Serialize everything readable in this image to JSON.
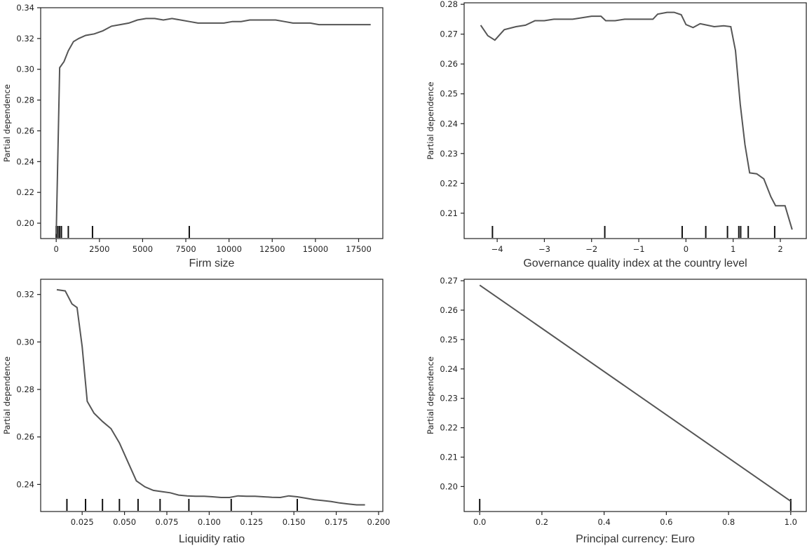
{
  "chart_data": [
    {
      "type": "line",
      "xlabel": "Firm size",
      "ylabel": "Partial dependence",
      "xlim": [
        -900,
        18900
      ],
      "ylim": [
        0.19,
        0.34
      ],
      "xticks": [
        0,
        2500,
        5000,
        7500,
        10000,
        12500,
        15000,
        17500
      ],
      "xtick_labels": [
        "0",
        "2500",
        "5000",
        "7500",
        "10000",
        "12500",
        "15000",
        "17500"
      ],
      "yticks": [
        0.2,
        0.22,
        0.24,
        0.26,
        0.28,
        0.3,
        0.32,
        0.34
      ],
      "ytick_labels": [
        "0.20",
        "0.22",
        "0.24",
        "0.26",
        "0.28",
        "0.30",
        "0.32",
        "0.34"
      ],
      "series": [
        {
          "x": [
            0,
            200,
            450,
            700,
            1000,
            1300,
            1700,
            2200,
            2700,
            3200,
            3700,
            4200,
            4700,
            5200,
            5700,
            6200,
            6700,
            7200,
            7700,
            8200,
            8700,
            9200,
            9700,
            10200,
            10700,
            11200,
            11700,
            12200,
            12700,
            13200,
            13700,
            14200,
            14700,
            15200,
            15700,
            16200,
            16700,
            17200,
            17700,
            18200
          ],
          "values": [
            0.193,
            0.301,
            0.305,
            0.312,
            0.318,
            0.32,
            0.322,
            0.323,
            0.325,
            0.328,
            0.329,
            0.33,
            0.332,
            0.333,
            0.333,
            0.332,
            0.333,
            0.332,
            0.331,
            0.33,
            0.33,
            0.33,
            0.33,
            0.331,
            0.331,
            0.332,
            0.332,
            0.332,
            0.332,
            0.331,
            0.33,
            0.33,
            0.33,
            0.329,
            0.329,
            0.329,
            0.329,
            0.329,
            0.329,
            0.329
          ]
        }
      ],
      "rug": [
        0,
        100,
        200,
        300,
        700,
        2100,
        7700
      ]
    },
    {
      "type": "line",
      "xlabel": "Governance quality index at the country level",
      "ylabel": "Partial dependence",
      "xlim": [
        -4.7,
        2.55
      ],
      "ylim": [
        0.2015,
        0.2805
      ],
      "xticks": [
        -4,
        -3,
        -2,
        -1,
        0,
        1,
        2
      ],
      "xtick_labels": [
        "−4",
        "−3",
        "−2",
        "−1",
        "0",
        "1",
        "2"
      ],
      "yticks": [
        0.21,
        0.22,
        0.23,
        0.24,
        0.25,
        0.26,
        0.27,
        0.28
      ],
      "ytick_labels": [
        "0.21",
        "0.22",
        "0.23",
        "0.24",
        "0.25",
        "0.26",
        "0.27",
        "0.28"
      ],
      "series": [
        {
          "x": [
            -4.35,
            -4.2,
            -4.05,
            -3.85,
            -3.6,
            -3.4,
            -3.2,
            -3.0,
            -2.8,
            -2.6,
            -2.4,
            -2.2,
            -2.0,
            -1.8,
            -1.7,
            -1.5,
            -1.3,
            -1.1,
            -0.9,
            -0.7,
            -0.6,
            -0.4,
            -0.25,
            -0.1,
            0.0,
            0.15,
            0.3,
            0.45,
            0.6,
            0.8,
            0.95,
            1.05,
            1.15,
            1.25,
            1.35,
            1.5,
            1.65,
            1.8,
            1.9,
            2.1,
            2.25
          ],
          "values": [
            0.273,
            0.2695,
            0.268,
            0.2715,
            0.2725,
            0.273,
            0.2745,
            0.2745,
            0.275,
            0.275,
            0.275,
            0.2755,
            0.276,
            0.276,
            0.2745,
            0.2745,
            0.275,
            0.275,
            0.275,
            0.275,
            0.2767,
            0.2773,
            0.2773,
            0.2765,
            0.2732,
            0.2722,
            0.2735,
            0.273,
            0.2725,
            0.2728,
            0.2725,
            0.2645,
            0.2465,
            0.233,
            0.2235,
            0.2232,
            0.2215,
            0.2155,
            0.2125,
            0.2125,
            0.2045
          ]
        }
      ],
      "rug": [
        -4.1,
        -1.72,
        -0.08,
        0.42,
        0.88,
        1.12,
        1.16,
        1.32,
        1.88
      ]
    },
    {
      "type": "line",
      "xlabel": "Liquidity ratio",
      "ylabel": "Partial dependence",
      "xlim": [
        0.0005,
        0.2025
      ],
      "ylim": [
        0.2286,
        0.3264
      ],
      "xticks": [
        0.025,
        0.05,
        0.075,
        0.1,
        0.125,
        0.15,
        0.175,
        0.2
      ],
      "xtick_labels": [
        "0.025",
        "0.050",
        "0.075",
        "0.100",
        "0.125",
        "0.150",
        "0.175",
        "0.200"
      ],
      "yticks": [
        0.24,
        0.26,
        0.28,
        0.3,
        0.32
      ],
      "ytick_labels": [
        "0.24",
        "0.26",
        "0.28",
        "0.30",
        "0.32"
      ],
      "series": [
        {
          "x": [
            0.01,
            0.015,
            0.019,
            0.022,
            0.025,
            0.028,
            0.032,
            0.037,
            0.042,
            0.047,
            0.052,
            0.057,
            0.062,
            0.067,
            0.072,
            0.077,
            0.082,
            0.087,
            0.092,
            0.097,
            0.102,
            0.107,
            0.112,
            0.117,
            0.122,
            0.127,
            0.132,
            0.137,
            0.142,
            0.147,
            0.152,
            0.157,
            0.162,
            0.167,
            0.172,
            0.177,
            0.182,
            0.187,
            0.192
          ],
          "values": [
            0.322,
            0.3215,
            0.316,
            0.3145,
            0.298,
            0.275,
            0.27,
            0.2665,
            0.2635,
            0.2575,
            0.2495,
            0.2415,
            0.239,
            0.2375,
            0.237,
            0.2365,
            0.2355,
            0.2352,
            0.235,
            0.235,
            0.2348,
            0.2345,
            0.2345,
            0.2352,
            0.235,
            0.235,
            0.2348,
            0.2346,
            0.2345,
            0.2352,
            0.2348,
            0.2342,
            0.2336,
            0.2332,
            0.2328,
            0.2322,
            0.2318,
            0.2314,
            0.2314
          ]
        }
      ],
      "rug": [
        0.016,
        0.027,
        0.037,
        0.047,
        0.058,
        0.071,
        0.088,
        0.113,
        0.152
      ]
    },
    {
      "type": "line",
      "xlabel": "Principal currency: Euro",
      "ylabel": "Partial dependence",
      "xlim": [
        -0.05,
        1.05
      ],
      "ylim": [
        0.1915,
        0.2705
      ],
      "xticks": [
        0.0,
        0.2,
        0.4,
        0.6,
        0.8,
        1.0
      ],
      "xtick_labels": [
        "0.0",
        "0.2",
        "0.4",
        "0.6",
        "0.8",
        "1.0"
      ],
      "yticks": [
        0.2,
        0.21,
        0.22,
        0.23,
        0.24,
        0.25,
        0.26,
        0.27
      ],
      "ytick_labels": [
        "0.20",
        "0.21",
        "0.22",
        "0.23",
        "0.24",
        "0.25",
        "0.26",
        "0.27"
      ],
      "series": [
        {
          "x": [
            0.0,
            1.0
          ],
          "values": [
            0.2685,
            0.195
          ]
        }
      ],
      "rug": [
        0.0,
        1.0
      ]
    }
  ]
}
